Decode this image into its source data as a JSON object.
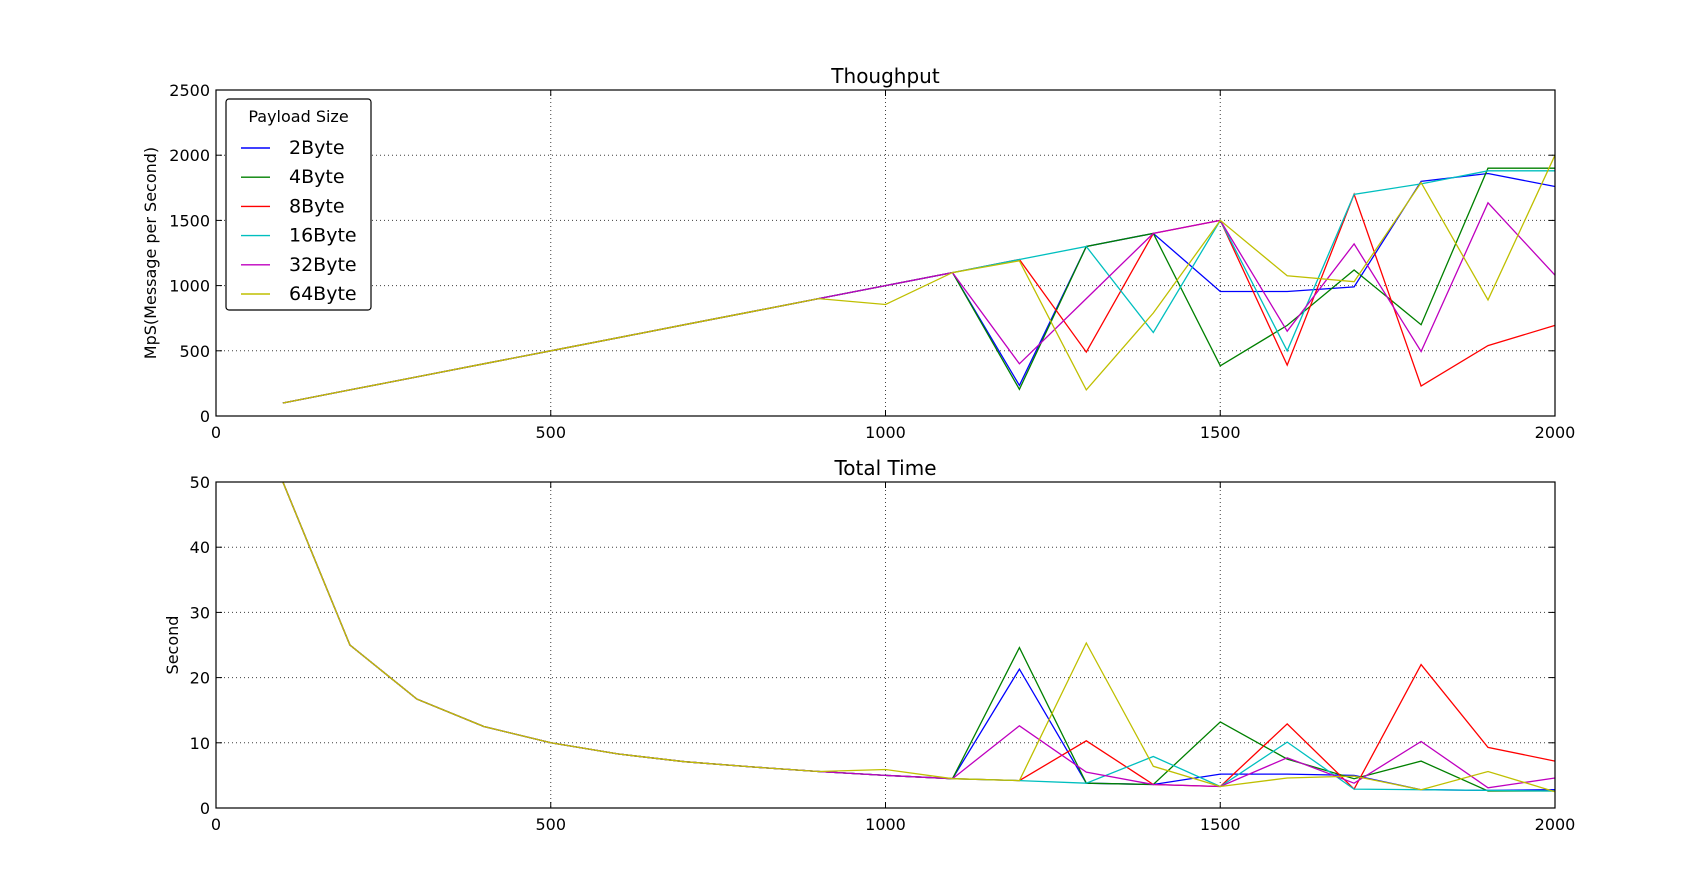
{
  "chart_data": [
    {
      "type": "line",
      "title": "Thoughput",
      "xlabel": "",
      "ylabel": "MpS(Message per Second)",
      "xlim": [
        0,
        2000
      ],
      "ylim": [
        0,
        2500
      ],
      "xticks": [
        "0",
        "500",
        "1000",
        "1500",
        "2000"
      ],
      "yticks": [
        "0",
        "500",
        "1000",
        "1500",
        "2000",
        "2500"
      ],
      "grid": true,
      "legend": {
        "title": "Payload Size",
        "placement": "top-left"
      },
      "x": [
        100,
        200,
        300,
        400,
        500,
        600,
        700,
        800,
        900,
        1000,
        1100,
        1200,
        1300,
        1400,
        1500,
        1600,
        1700,
        1800,
        1900,
        2000
      ],
      "series": [
        {
          "name": "2Byte",
          "color": "#0000ff",
          "values": [
            100,
            200,
            300,
            400,
            500,
            600,
            700,
            800,
            900,
            1000,
            1100,
            235,
            1300,
            1400,
            955,
            955,
            990,
            1800,
            1860,
            1760
          ]
        },
        {
          "name": "4Byte",
          "color": "#008000",
          "values": [
            100,
            200,
            300,
            400,
            500,
            600,
            700,
            800,
            900,
            1000,
            1100,
            205,
            1300,
            1400,
            385,
            695,
            1120,
            700,
            1900,
            1900
          ]
        },
        {
          "name": "8Byte",
          "color": "#ff0000",
          "values": [
            100,
            200,
            300,
            400,
            500,
            600,
            700,
            800,
            900,
            1000,
            1100,
            1200,
            490,
            1400,
            1500,
            390,
            1700,
            230,
            540,
            695
          ]
        },
        {
          "name": "16Byte",
          "color": "#00bfbf",
          "values": [
            100,
            200,
            300,
            400,
            500,
            600,
            700,
            800,
            900,
            1000,
            1100,
            1200,
            1300,
            640,
            1500,
            500,
            1700,
            1780,
            1880,
            1880
          ]
        },
        {
          "name": "32Byte",
          "color": "#bf00bf",
          "values": [
            100,
            200,
            300,
            400,
            500,
            600,
            700,
            800,
            900,
            1000,
            1100,
            400,
            900,
            1400,
            1500,
            650,
            1320,
            495,
            1635,
            1080
          ]
        },
        {
          "name": "64Byte",
          "color": "#bfbf00",
          "values": [
            100,
            200,
            300,
            400,
            500,
            600,
            700,
            800,
            900,
            855,
            1100,
            1190,
            200,
            790,
            1500,
            1075,
            1030,
            1790,
            890,
            2000
          ]
        }
      ]
    },
    {
      "type": "line",
      "title": "Total Time",
      "xlabel": "",
      "ylabel": "Second",
      "xlim": [
        0,
        2000
      ],
      "ylim": [
        0,
        50
      ],
      "xticks": [
        "0",
        "500",
        "1000",
        "1500",
        "2000"
      ],
      "yticks": [
        "0",
        "10",
        "20",
        "30",
        "40",
        "50"
      ],
      "grid": true,
      "x": [
        100,
        200,
        300,
        400,
        500,
        600,
        700,
        800,
        900,
        1000,
        1100,
        1200,
        1300,
        1400,
        1500,
        1600,
        1700,
        1800,
        1900,
        2000
      ],
      "series": [
        {
          "color": "#0000ff",
          "values": [
            50,
            25,
            16.7,
            12.5,
            10,
            8.3,
            7.1,
            6.3,
            5.6,
            5.0,
            4.5,
            21.3,
            3.8,
            3.6,
            5.2,
            5.2,
            5.0,
            2.8,
            2.7,
            2.8
          ]
        },
        {
          "color": "#008000",
          "values": [
            50,
            25,
            16.7,
            12.5,
            10,
            8.3,
            7.1,
            6.3,
            5.6,
            5.0,
            4.5,
            24.6,
            3.8,
            3.6,
            13.2,
            7.5,
            4.5,
            7.2,
            2.6,
            2.6
          ]
        },
        {
          "color": "#ff0000",
          "values": [
            50,
            25,
            16.7,
            12.5,
            10,
            8.3,
            7.1,
            6.3,
            5.6,
            5.0,
            4.5,
            4.2,
            10.3,
            3.6,
            3.3,
            12.9,
            2.9,
            22.0,
            9.3,
            7.2
          ]
        },
        {
          "color": "#00bfbf",
          "values": [
            50,
            25,
            16.7,
            12.5,
            10,
            8.3,
            7.1,
            6.3,
            5.6,
            5.0,
            4.5,
            4.2,
            3.8,
            7.9,
            3.3,
            10.1,
            2.9,
            2.8,
            2.7,
            2.6
          ]
        },
        {
          "color": "#bf00bf",
          "values": [
            50,
            25,
            16.7,
            12.5,
            10,
            8.3,
            7.1,
            6.3,
            5.6,
            5.0,
            4.5,
            12.6,
            5.5,
            3.6,
            3.3,
            7.7,
            3.8,
            10.2,
            3.1,
            4.6
          ]
        },
        {
          "color": "#bfbf00",
          "values": [
            50,
            25,
            16.7,
            12.5,
            10,
            8.3,
            7.1,
            6.3,
            5.6,
            5.9,
            4.5,
            4.2,
            25.3,
            6.4,
            3.3,
            4.6,
            4.9,
            2.8,
            5.6,
            2.5
          ]
        }
      ]
    }
  ]
}
